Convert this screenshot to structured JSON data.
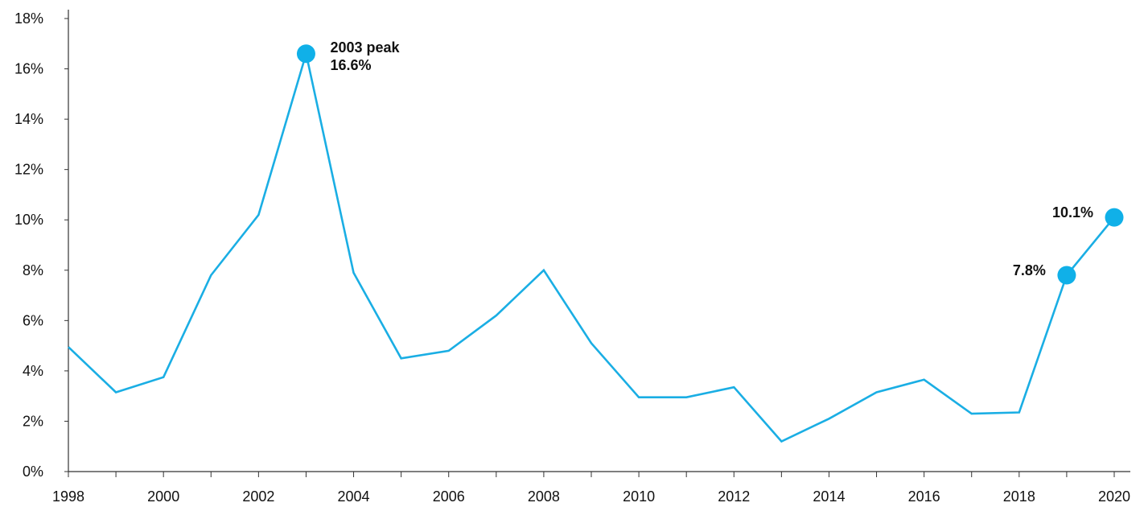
{
  "chart_data": {
    "type": "line",
    "title": "",
    "xlabel": "",
    "ylabel": "",
    "x": [
      1998,
      1999,
      2000,
      2001,
      2002,
      2003,
      2004,
      2005,
      2006,
      2007,
      2008,
      2009,
      2010,
      2011,
      2012,
      2013,
      2014,
      2015,
      2016,
      2017,
      2018,
      2019,
      2020
    ],
    "series": [
      {
        "values": [
          4.95,
          3.15,
          3.75,
          7.8,
          10.2,
          16.6,
          7.9,
          4.5,
          4.8,
          6.2,
          8.0,
          5.1,
          2.95,
          2.95,
          3.35,
          1.2,
          2.1,
          3.15,
          3.65,
          2.3,
          2.35,
          7.8,
          10.1
        ]
      }
    ],
    "xlim": [
      1998,
      2020
    ],
    "ylim": [
      0,
      18
    ],
    "x_ticks": [
      "1998",
      "2000",
      "2002",
      "2004",
      "2006",
      "2008",
      "2010",
      "2012",
      "2014",
      "2016",
      "2018",
      "2020"
    ],
    "y_ticks": [
      "0%",
      "2%",
      "4%",
      "6%",
      "8%",
      "10%",
      "12%",
      "14%",
      "16%",
      "18%"
    ],
    "grid": false,
    "legend": "none",
    "line_color": "#1aaee4",
    "marker_color": "#10b0e8",
    "annotations": [
      {
        "x": 2003,
        "y": 16.6,
        "lines": [
          "2003 peak",
          "16.6%"
        ],
        "side": "right"
      },
      {
        "x": 2019,
        "y": 7.8,
        "lines": [
          "7.8%"
        ],
        "side": "left"
      },
      {
        "x": 2020,
        "y": 10.1,
        "lines": [
          "10.1%"
        ],
        "side": "left"
      }
    ]
  }
}
